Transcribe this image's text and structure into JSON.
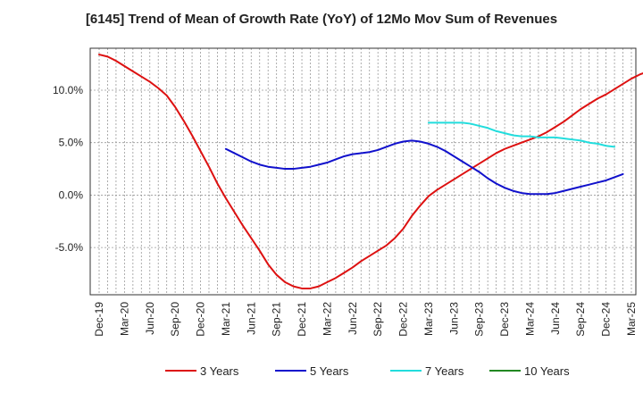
{
  "chart_data": {
    "type": "line",
    "title": "[6145]  Trend of Mean of Growth Rate (YoY) of 12Mo Mov Sum of Revenues",
    "xlabel": "",
    "ylabel": "",
    "ylim": [
      -9.5,
      14.0
    ],
    "yticks": [
      10,
      5,
      0,
      -5
    ],
    "ytick_labels": [
      "10.0%",
      "5.0%",
      "0.0%",
      "-5.0%"
    ],
    "x_tick_labels": [
      "Dec-19",
      "Mar-20",
      "Jun-20",
      "Sep-20",
      "Dec-20",
      "Mar-21",
      "Jun-21",
      "Sep-21",
      "Dec-21",
      "Mar-22",
      "Jun-22",
      "Sep-22",
      "Dec-22",
      "Mar-23",
      "Jun-23",
      "Sep-23",
      "Dec-23",
      "Mar-24",
      "Jun-24",
      "Sep-24",
      "Dec-24",
      "Mar-25"
    ],
    "x_start_month_index": 0,
    "grid": true,
    "legend_position": "bottom",
    "series": [
      {
        "name": "3 Years",
        "color": "#dd1111",
        "start": 0,
        "values": [
          13.4,
          13.2,
          12.8,
          12.3,
          11.8,
          11.3,
          10.8,
          10.2,
          9.5,
          8.4,
          7.1,
          5.7,
          4.2,
          2.7,
          1.1,
          -0.3,
          -1.6,
          -2.9,
          -4.1,
          -5.3,
          -6.6,
          -7.6,
          -8.3,
          -8.7,
          -8.9,
          -8.9,
          -8.7,
          -8.3,
          -7.9,
          -7.4,
          -6.9,
          -6.3,
          -5.8,
          -5.3,
          -4.8,
          -4.1,
          -3.2,
          -2.0,
          -1.0,
          -0.1,
          0.5,
          1.0,
          1.5,
          2.0,
          2.5,
          3.0,
          3.5,
          4.0,
          4.4,
          4.7,
          5.0,
          5.3,
          5.6,
          6.0,
          6.5,
          7.0,
          7.6,
          8.2,
          8.7,
          9.2,
          9.6,
          10.1,
          10.6,
          11.1,
          11.5,
          11.8,
          12.0
        ]
      },
      {
        "name": "5 Years",
        "color": "#1111cc",
        "start": 15,
        "values": [
          4.4,
          4.0,
          3.6,
          3.2,
          2.9,
          2.7,
          2.6,
          2.5,
          2.5,
          2.6,
          2.7,
          2.9,
          3.1,
          3.4,
          3.7,
          3.9,
          4.0,
          4.1,
          4.3,
          4.6,
          4.9,
          5.1,
          5.2,
          5.1,
          4.9,
          4.6,
          4.2,
          3.7,
          3.2,
          2.7,
          2.2,
          1.6,
          1.1,
          0.7,
          0.4,
          0.2,
          0.1,
          0.1,
          0.1,
          0.2,
          0.4,
          0.6,
          0.8,
          1.0,
          1.2,
          1.4,
          1.7,
          2.0
        ]
      },
      {
        "name": "7 Years",
        "color": "#22dddd",
        "start": 39,
        "values": [
          6.9,
          6.9,
          6.9,
          6.9,
          6.9,
          6.8,
          6.6,
          6.4,
          6.1,
          5.9,
          5.7,
          5.6,
          5.6,
          5.5,
          5.5,
          5.5,
          5.4,
          5.3,
          5.2,
          5.0,
          4.9,
          4.7,
          4.6
        ]
      },
      {
        "name": "10 Years",
        "color": "#228822",
        "start": 0,
        "values": []
      }
    ]
  }
}
